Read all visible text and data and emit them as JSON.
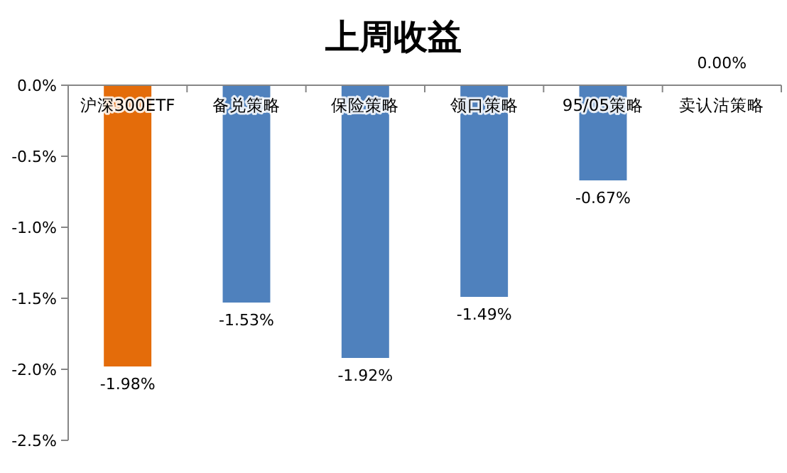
{
  "chart_data": {
    "type": "bar",
    "title": "上周收益",
    "categories": [
      "沪深300ETF",
      "备兑策略",
      "保险策略",
      "领口策略",
      "95/05策略",
      "卖认沽策略"
    ],
    "values": [
      -1.98,
      -1.53,
      -1.92,
      -1.49,
      -0.67,
      0
    ],
    "colors": [
      "#e46c0a",
      "#4f81bd",
      "#4f81bd",
      "#4f81bd",
      "#4f81bd",
      "#4f81bd"
    ],
    "value_labels": [
      "-1.98%",
      "-1.53%",
      "-1.92%",
      "-1.49%",
      "-0.67%",
      "0.00%"
    ],
    "ylim": [
      -2.5,
      0
    ],
    "yticks": [
      {
        "value": 0,
        "label": "0.0%"
      },
      {
        "value": -0.5,
        "label": "-0.5%"
      },
      {
        "value": -1,
        "label": "-1.0%"
      },
      {
        "value": -1.5,
        "label": "-1.5%"
      },
      {
        "value": -2,
        "label": "-2.0%"
      },
      {
        "value": -2.5,
        "label": "-2.5%"
      }
    ],
    "grid": false
  }
}
